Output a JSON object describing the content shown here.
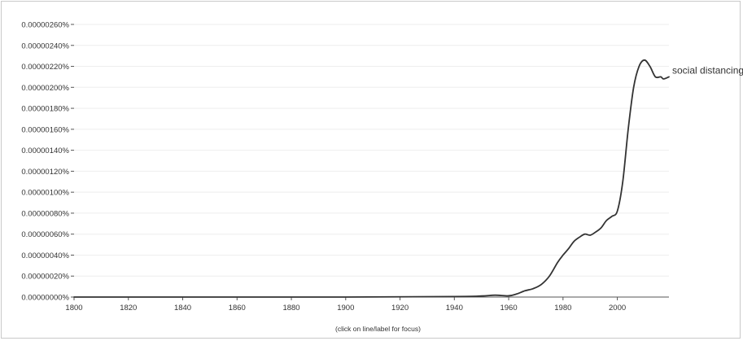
{
  "chart_data": {
    "type": "line",
    "xlim": [
      1800,
      2019
    ],
    "ylim": [
      0,
      2.6e-06
    ],
    "y_unit": "%",
    "grid": "horizontal",
    "x_ticks": [
      1800,
      1820,
      1840,
      1860,
      1880,
      1900,
      1920,
      1940,
      1960,
      1980,
      2000
    ],
    "y_ticks": [
      2.6e-06,
      2.4e-06,
      2.2e-06,
      2e-06,
      1.8e-06,
      1.6e-06,
      1.4e-06,
      1.2e-06,
      1e-06,
      8e-07,
      6e-07,
      4e-07,
      2e-07,
      0
    ],
    "y_tick_labels": [
      "0.00000260%",
      "0.00000240%",
      "0.00000220%",
      "0.00000200%",
      "0.00000180%",
      "0.00000160%",
      "0.00000140%",
      "0.00000120%",
      "0.00000100%",
      "0.00000080%",
      "0.00000060%",
      "0.00000040%",
      "0.00000020%",
      "0.00000000%"
    ],
    "x_tick_labels": [
      "1800",
      "1820",
      "1840",
      "1860",
      "1880",
      "1900",
      "1920",
      "1940",
      "1960",
      "1980",
      "2000"
    ],
    "hint": "(click on line/label for focus)",
    "series": [
      {
        "name": "social distancing",
        "color": "#333333",
        "x": [
          1800,
          1900,
          1940,
          1950,
          1955,
          1960,
          1963,
          1966,
          1969,
          1972,
          1975,
          1978,
          1980,
          1982,
          1984,
          1986,
          1988,
          1990,
          1992,
          1994,
          1996,
          1998,
          2000,
          2002,
          2004,
          2006,
          2008,
          2010,
          2012,
          2014,
          2016,
          2017,
          2019
        ],
        "y": [
          0,
          0,
          5e-09,
          1e-08,
          1.8e-08,
          1.2e-08,
          3e-08,
          6e-08,
          8e-08,
          1.2e-07,
          2e-07,
          3.3e-07,
          4e-07,
          4.6e-07,
          5.3e-07,
          5.7e-07,
          6e-07,
          5.9e-07,
          6.2e-07,
          6.6e-07,
          7.3e-07,
          7.7e-07,
          8.2e-07,
          1.1e-06,
          1.6e-06,
          2e-06,
          2.2e-06,
          2.26e-06,
          2.2e-06,
          2.1e-06,
          2.1e-06,
          2.08e-06,
          2.1e-06
        ]
      }
    ]
  }
}
